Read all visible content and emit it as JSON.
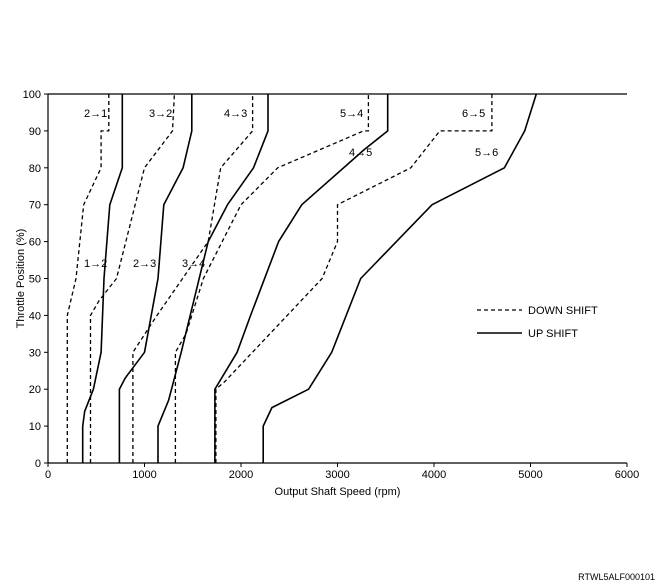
{
  "chart_data": {
    "type": "line",
    "xlabel": "Output Shaft Speed (rpm)",
    "ylabel": "Throttle Position (%)",
    "xlim": [
      0,
      6000
    ],
    "ylim": [
      0,
      100
    ],
    "x_ticks": [
      "0",
      "1000",
      "2000",
      "3000",
      "4000",
      "5000",
      "6000"
    ],
    "y_ticks": [
      "0",
      "10",
      "20",
      "30",
      "40",
      "50",
      "60",
      "70",
      "80",
      "90",
      "100"
    ],
    "grid": false,
    "legend_position": "right",
    "legend": [
      {
        "label": "DOWN SHIFT",
        "style": "dashed"
      },
      {
        "label": "UP SHIFT",
        "style": "solid"
      }
    ],
    "series": [
      {
        "name": "1→2",
        "style": "solid",
        "points": [
          [
            360,
            0
          ],
          [
            360,
            10
          ],
          [
            380,
            14
          ],
          [
            470,
            20
          ],
          [
            550,
            30
          ],
          [
            580,
            50
          ],
          [
            640,
            70
          ],
          [
            770,
            80
          ],
          [
            770,
            100
          ]
        ]
      },
      {
        "name": "2→1",
        "style": "dashed",
        "points": [
          [
            200,
            0
          ],
          [
            200,
            40
          ],
          [
            290,
            50
          ],
          [
            370,
            70
          ],
          [
            550,
            80
          ],
          [
            550,
            90
          ],
          [
            630,
            90
          ],
          [
            630,
            100
          ]
        ]
      },
      {
        "name": "2→3",
        "style": "solid",
        "points": [
          [
            740,
            0
          ],
          [
            740,
            20
          ],
          [
            800,
            23
          ],
          [
            1000,
            30
          ],
          [
            1140,
            50
          ],
          [
            1200,
            70
          ],
          [
            1400,
            80
          ],
          [
            1490,
            90
          ],
          [
            1490,
            100
          ]
        ]
      },
      {
        "name": "3→2",
        "style": "dashed",
        "points": [
          [
            440,
            0
          ],
          [
            440,
            40
          ],
          [
            530,
            44
          ],
          [
            710,
            50
          ],
          [
            1000,
            80
          ],
          [
            1290,
            90
          ],
          [
            1310,
            100
          ]
        ]
      },
      {
        "name": "3→4",
        "style": "solid",
        "points": [
          [
            1140,
            0
          ],
          [
            1140,
            10
          ],
          [
            1250,
            17
          ],
          [
            1380,
            30
          ],
          [
            1660,
            60
          ],
          [
            1860,
            70
          ],
          [
            2130,
            80
          ],
          [
            2280,
            90
          ],
          [
            2280,
            100
          ]
        ]
      },
      {
        "name": "4→3",
        "style": "dashed",
        "points": [
          [
            880,
            0
          ],
          [
            880,
            30
          ],
          [
            1130,
            40
          ],
          [
            1660,
            60
          ],
          [
            1790,
            80
          ],
          [
            2120,
            90
          ],
          [
            2120,
            100
          ]
        ]
      },
      {
        "name": "4→5",
        "style": "solid",
        "points": [
          [
            1730,
            0
          ],
          [
            1730,
            20
          ],
          [
            1960,
            30
          ],
          [
            2100,
            40
          ],
          [
            2390,
            60
          ],
          [
            2630,
            70
          ],
          [
            3280,
            85
          ],
          [
            3520,
            90
          ],
          [
            3520,
            100
          ]
        ]
      },
      {
        "name": "5→4",
        "style": "dashed",
        "points": [
          [
            1320,
            0
          ],
          [
            1320,
            30
          ],
          [
            1430,
            35
          ],
          [
            1610,
            50
          ],
          [
            2000,
            70
          ],
          [
            2380,
            80
          ],
          [
            3270,
            90
          ],
          [
            3320,
            90
          ],
          [
            3320,
            100
          ]
        ]
      },
      {
        "name": "5→6",
        "style": "solid",
        "points": [
          [
            2230,
            0
          ],
          [
            2230,
            10
          ],
          [
            2320,
            15
          ],
          [
            2700,
            20
          ],
          [
            2940,
            30
          ],
          [
            3240,
            50
          ],
          [
            3980,
            70
          ],
          [
            4730,
            80
          ],
          [
            4940,
            90
          ],
          [
            5060,
            100
          ]
        ]
      },
      {
        "name": "6→5",
        "style": "dashed",
        "points": [
          [
            1740,
            0
          ],
          [
            1740,
            20
          ],
          [
            1830,
            22
          ],
          [
            2840,
            50
          ],
          [
            3000,
            60
          ],
          [
            3000,
            70
          ],
          [
            3760,
            80
          ],
          [
            4060,
            90
          ],
          [
            4600,
            90
          ],
          [
            4600,
            100
          ]
        ]
      }
    ],
    "labels": [
      "2→1",
      "3→2",
      "4→3",
      "5→4",
      "6→5",
      "1→2",
      "2→3",
      "3→4",
      "4→5",
      "5→6"
    ],
    "figure_code": "RTWL5ALF000101"
  }
}
